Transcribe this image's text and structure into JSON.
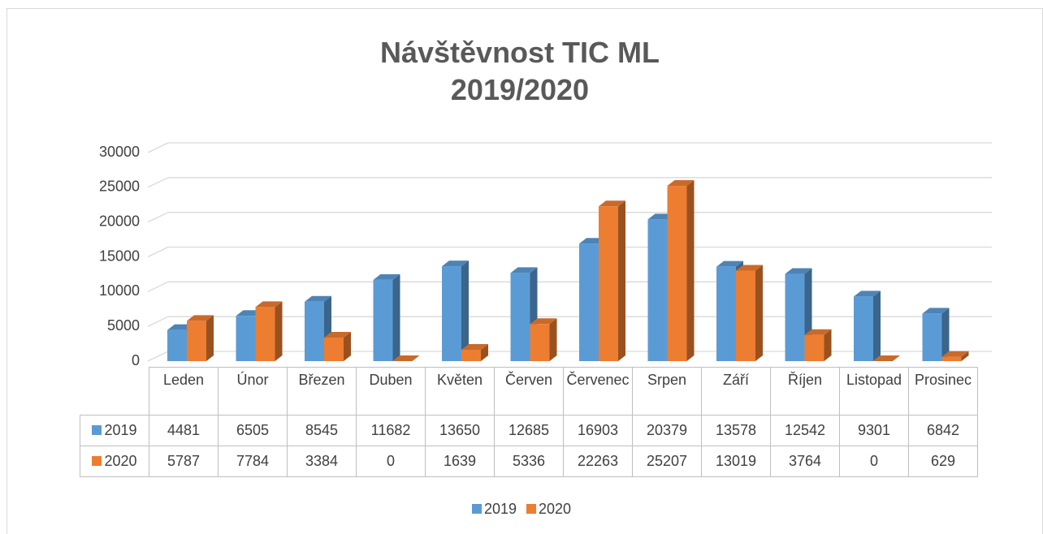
{
  "chart_data": {
    "type": "bar",
    "title": "Návštěvnost TIC ML 2019/2020",
    "categories": [
      "Leden",
      "Únor",
      "Březen",
      "Duben",
      "Květen",
      "Červen",
      "Červenec",
      "Srpen",
      "Září",
      "Říjen",
      "Listopad",
      "Prosinec"
    ],
    "series": [
      {
        "name": "2019",
        "color": "#5b9bd5",
        "values": [
          4481,
          6505,
          8545,
          11682,
          13650,
          12685,
          16903,
          20379,
          13578,
          12542,
          9301,
          6842
        ]
      },
      {
        "name": "2020",
        "color": "#ed7d31",
        "values": [
          5787,
          7784,
          3384,
          0,
          1639,
          5336,
          22263,
          25207,
          13019,
          3764,
          0,
          629
        ]
      }
    ],
    "ylim": [
      0,
      30000
    ],
    "yticks": [
      0,
      5000,
      10000,
      15000,
      20000,
      25000,
      30000
    ],
    "grid": true,
    "legend": "bottom",
    "data_table": true
  }
}
